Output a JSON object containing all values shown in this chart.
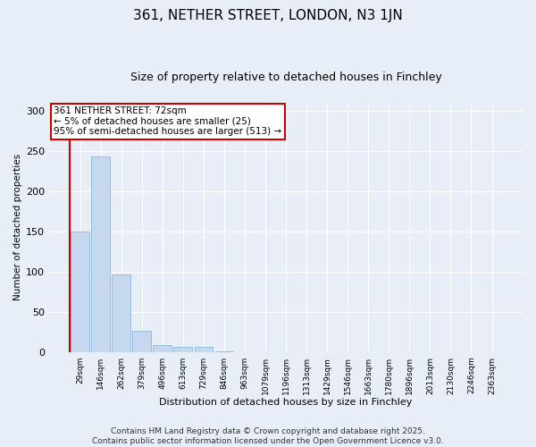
{
  "title": "361, NETHER STREET, LONDON, N3 1JN",
  "subtitle": "Size of property relative to detached houses in Finchley",
  "xlabel": "Distribution of detached houses by size in Finchley",
  "ylabel": "Number of detached properties",
  "categories": [
    "29sqm",
    "146sqm",
    "262sqm",
    "379sqm",
    "496sqm",
    "613sqm",
    "729sqm",
    "846sqm",
    "963sqm",
    "1079sqm",
    "1196sqm",
    "1313sqm",
    "1429sqm",
    "1546sqm",
    "1663sqm",
    "1780sqm",
    "1896sqm",
    "2013sqm",
    "2130sqm",
    "2246sqm",
    "2363sqm"
  ],
  "values": [
    150,
    243,
    96,
    27,
    9,
    7,
    7,
    1,
    0,
    0,
    0,
    0,
    0,
    0,
    0,
    0,
    0,
    0,
    0,
    0,
    0
  ],
  "bar_color": "#c5d8f0",
  "bar_edge_color": "#7bafd4",
  "annotation_text": "361 NETHER STREET: 72sqm\n← 5% of detached houses are smaller (25)\n95% of semi-detached houses are larger (513) →",
  "annotation_box_color": "#ffffff",
  "annotation_box_edge_color": "#cc0000",
  "ylim": [
    0,
    310
  ],
  "yticks": [
    0,
    50,
    100,
    150,
    200,
    250,
    300
  ],
  "background_color": "#e8eef8",
  "grid_color": "#ffffff",
  "footer": "Contains HM Land Registry data © Crown copyright and database right 2025.\nContains public sector information licensed under the Open Government Licence v3.0.",
  "title_fontsize": 11,
  "subtitle_fontsize": 9,
  "annotation_fontsize": 7.5,
  "footer_fontsize": 6.5,
  "ylabel_fontsize": 7.5,
  "xlabel_fontsize": 8,
  "ytick_fontsize": 8,
  "xtick_fontsize": 6.5
}
